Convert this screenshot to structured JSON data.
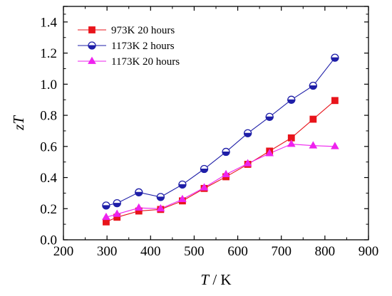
{
  "chart_data": {
    "type": "line",
    "xlabel_var": "T",
    "xlabel_unit": " / K",
    "ylabel_var": "zT",
    "xlim": [
      200,
      900
    ],
    "ylim": [
      0.0,
      1.5
    ],
    "x_ticks": [
      200,
      300,
      400,
      500,
      600,
      700,
      800,
      900
    ],
    "y_ticks": [
      0.0,
      0.2,
      0.4,
      0.6,
      0.8,
      1.0,
      1.2,
      1.4
    ],
    "grid": false,
    "legend_position": "top-left",
    "series": [
      {
        "name": "973K 20 hours",
        "color": "#e8141b",
        "marker": "square",
        "x": [
          298,
          323,
          373,
          423,
          473,
          523,
          573,
          623,
          673,
          723,
          773,
          823
        ],
        "y": [
          0.115,
          0.145,
          0.185,
          0.195,
          0.25,
          0.33,
          0.405,
          0.485,
          0.57,
          0.655,
          0.775,
          0.895
        ]
      },
      {
        "name": "1173K 2 hours",
        "color": "#1f1fa8",
        "marker": "half-circle",
        "x": [
          298,
          323,
          373,
          423,
          473,
          523,
          573,
          623,
          673,
          723,
          773,
          823
        ],
        "y": [
          0.22,
          0.235,
          0.305,
          0.275,
          0.355,
          0.455,
          0.565,
          0.685,
          0.79,
          0.9,
          0.99,
          1.17
        ]
      },
      {
        "name": "1173K 20 hours",
        "color": "#ee22ee",
        "marker": "triangle",
        "x": [
          298,
          323,
          373,
          423,
          473,
          523,
          573,
          623,
          673,
          723,
          773,
          823
        ],
        "y": [
          0.145,
          0.165,
          0.205,
          0.2,
          0.26,
          0.335,
          0.42,
          0.49,
          0.555,
          0.615,
          0.605,
          0.6
        ]
      }
    ]
  }
}
